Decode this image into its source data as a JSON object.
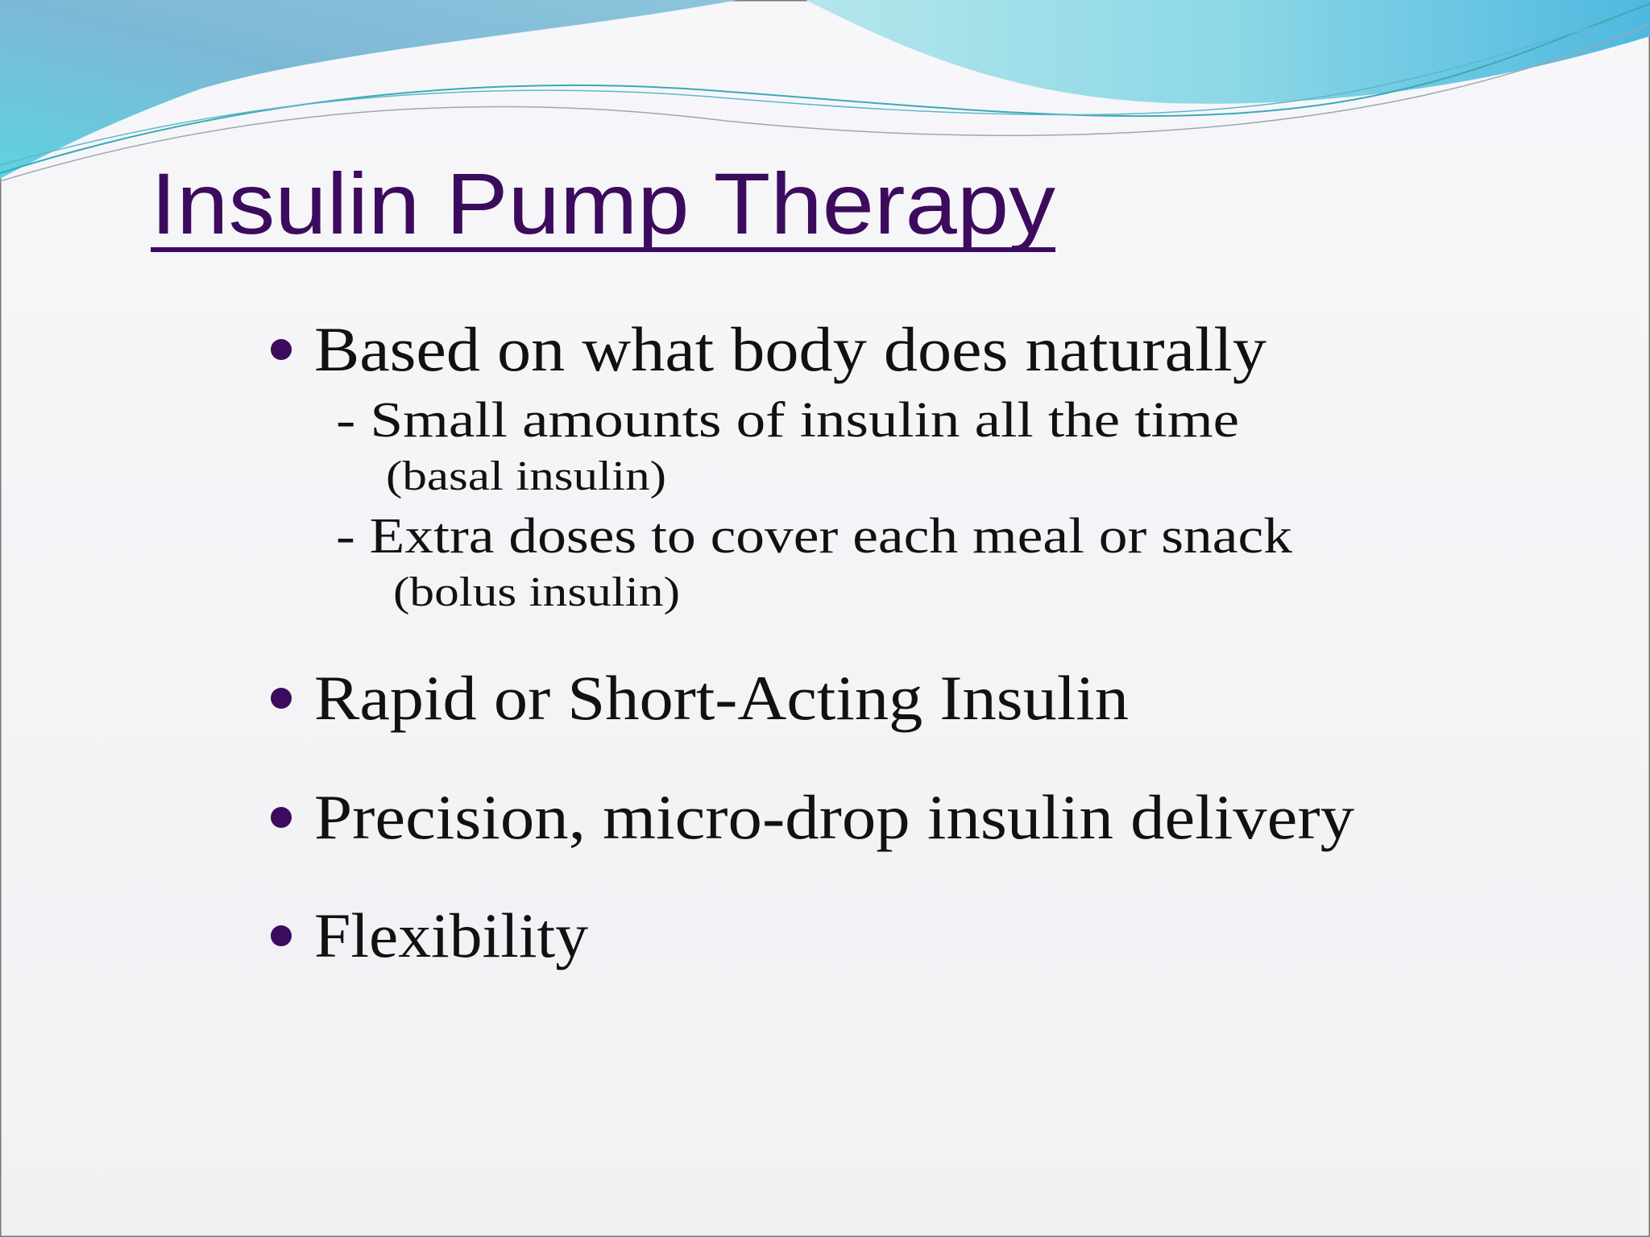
{
  "title": "Insulin Pump Therapy",
  "bullets": [
    {
      "text": "Based on what body does naturally",
      "sub": [
        "- Small amounts of insulin all the time",
        "(basal insulin)",
        "- Extra doses to cover each meal or snack",
        "(bolus insulin)"
      ]
    },
    {
      "text": "Rapid or Short-Acting Insulin"
    },
    {
      "text": "Precision, micro-drop insulin delivery"
    },
    {
      "text": "Flexibility"
    }
  ]
}
